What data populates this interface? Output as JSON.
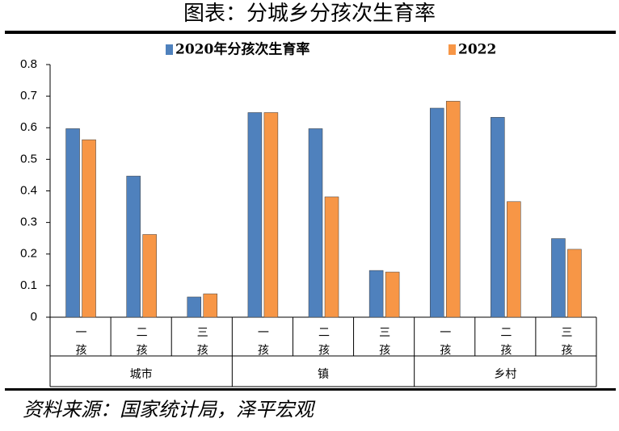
{
  "chart_data": {
    "type": "bar",
    "title": "图表：分城乡分孩次生育率",
    "categories": [
      "一孩",
      "二孩",
      "三孩",
      "一孩",
      "二孩",
      "三孩",
      "一孩",
      "二孩",
      "三孩"
    ],
    "groups": [
      "城市",
      "镇",
      "乡村"
    ],
    "series": [
      {
        "name": "2020年分孩次生育率",
        "color": "#4f81bd",
        "values": [
          0.597,
          0.447,
          0.064,
          0.648,
          0.597,
          0.148,
          0.662,
          0.633,
          0.249
        ]
      },
      {
        "name": "2022",
        "color": "#f79646",
        "values": [
          0.562,
          0.262,
          0.074,
          0.648,
          0.381,
          0.143,
          0.684,
          0.366,
          0.215
        ]
      }
    ],
    "ylim": [
      0,
      0.8
    ],
    "yticks": [
      0,
      0.1,
      0.2,
      0.3,
      0.4,
      0.5,
      0.6,
      0.7,
      0.8
    ],
    "legend": "top",
    "source": "资料来源：国家统计局，泽平宏观"
  }
}
